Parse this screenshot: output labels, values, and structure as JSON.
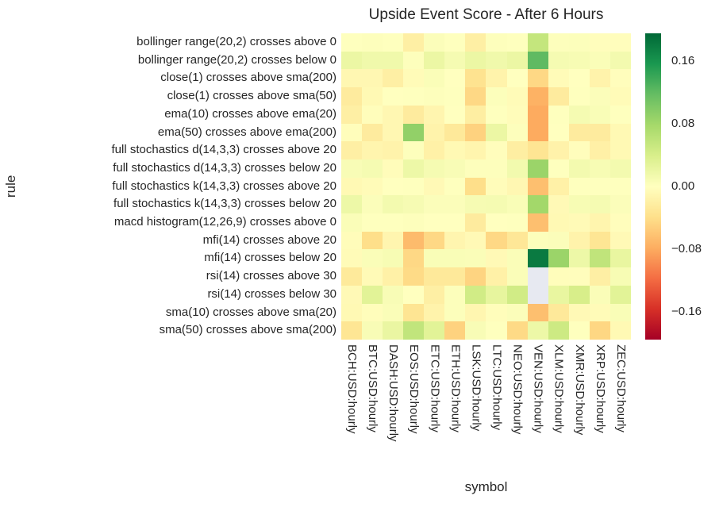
{
  "chart_data": {
    "type": "heatmap",
    "title": "Upside Event Score - After 6 Hours",
    "xlabel": "symbol",
    "ylabel": "rule",
    "columns": [
      "BCH:USD:hourly",
      "BTC:USD:hourly",
      "DASH:USD:hourly",
      "EOS:USD:hourly",
      "ETC:USD:hourly",
      "ETH:USD:hourly",
      "LSK:USD:hourly",
      "LTC:USD:hourly",
      "NEO:USD:hourly",
      "VEN:USD:hourly",
      "XLM:USD:hourly",
      "XMR:USD:hourly",
      "XRP:USD:hourly",
      "ZEC:USD:hourly"
    ],
    "rows": [
      "bollinger range(20,2) crosses above 0",
      "bollinger range(20,2) crosses below 0",
      "close(1) crosses above sma(200)",
      "close(1) crosses above sma(50)",
      "ema(10) crosses above ema(20)",
      "ema(50) crosses above ema(200)",
      "full stochastics d(14,3,3) crosses above 20",
      "full stochastics d(14,3,3) crosses below 20",
      "full stochastics k(14,3,3) crosses above 20",
      "full stochastics k(14,3,3) crosses below 20",
      "macd histogram(12,26,9) crosses above 0",
      "mfi(14) crosses above 20",
      "mfi(14) crosses below 20",
      "rsi(14) crosses above 30",
      "rsi(14) crosses below 30",
      "sma(10) crosses above sma(20)",
      "sma(50) crosses above sma(200)"
    ],
    "values": [
      [
        0.001,
        0.002,
        0.001,
        -0.02,
        0.004,
        0.001,
        -0.02,
        0.002,
        0.001,
        0.055,
        0.002,
        0.003,
        -0.002,
        -0.002
      ],
      [
        0.02,
        0.015,
        0.015,
        0.002,
        0.02,
        0.01,
        0.02,
        0.015,
        0.02,
        0.12,
        0.01,
        0.008,
        0.005,
        0.012
      ],
      [
        -0.01,
        -0.01,
        -0.02,
        -0.005,
        0.005,
        0.0,
        -0.035,
        -0.015,
        0.0,
        -0.045,
        -0.005,
        0.0,
        -0.015,
        -0.002
      ],
      [
        -0.025,
        -0.008,
        0.0,
        0.001,
        0.002,
        0.001,
        -0.045,
        0.003,
        -0.005,
        -0.075,
        -0.025,
        0.001,
        0.004,
        -0.005
      ],
      [
        -0.02,
        -0.003,
        -0.01,
        -0.025,
        -0.012,
        0.0,
        -0.022,
        0.001,
        -0.004,
        -0.08,
        0.001,
        0.01,
        0.006,
        0.001
      ],
      [
        -0.003,
        -0.025,
        -0.01,
        0.09,
        -0.015,
        -0.028,
        -0.05,
        0.02,
        0.002,
        -0.08,
        0.0,
        -0.025,
        -0.025,
        -0.008
      ],
      [
        -0.02,
        -0.013,
        -0.015,
        0.002,
        -0.018,
        -0.008,
        -0.013,
        -0.002,
        -0.022,
        -0.033,
        -0.016,
        -0.002,
        -0.019,
        -0.008
      ],
      [
        0.007,
        0.01,
        -0.004,
        0.018,
        0.01,
        0.007,
        0.002,
        0.002,
        0.013,
        0.085,
        0.001,
        0.012,
        0.008,
        0.012
      ],
      [
        -0.008,
        -0.005,
        0.0,
        0.001,
        -0.007,
        0.001,
        -0.04,
        -0.004,
        -0.01,
        -0.065,
        -0.018,
        0.001,
        0.001,
        0.001
      ],
      [
        0.018,
        0.004,
        0.012,
        0.009,
        0.004,
        0.004,
        0.009,
        0.01,
        0.006,
        0.08,
        -0.007,
        0.008,
        0.01,
        0.004
      ],
      [
        0.005,
        0.001,
        0.001,
        0.002,
        0.0,
        0.0,
        -0.025,
        0.0,
        0.001,
        -0.065,
        -0.008,
        -0.006,
        -0.013,
        -0.002
      ],
      [
        -0.004,
        -0.04,
        -0.012,
        -0.068,
        -0.045,
        -0.012,
        -0.007,
        -0.045,
        -0.03,
        0.003,
        0.004,
        -0.015,
        -0.032,
        -0.007
      ],
      [
        -0.005,
        0.005,
        0.008,
        -0.045,
        0.006,
        0.006,
        0.005,
        -0.007,
        0.005,
        0.18,
        0.085,
        0.018,
        0.058,
        0.023
      ],
      [
        -0.027,
        -0.006,
        -0.018,
        -0.043,
        -0.028,
        -0.028,
        -0.048,
        -0.018,
        0.005,
        null,
        -0.003,
        -0.002,
        -0.02,
        0.008
      ],
      [
        -0.007,
        0.03,
        0.007,
        0.0,
        -0.02,
        0.003,
        0.045,
        0.025,
        0.045,
        null,
        0.023,
        0.04,
        0.005,
        0.03
      ],
      [
        -0.008,
        -0.003,
        0.005,
        -0.033,
        -0.015,
        0.003,
        -0.011,
        -0.003,
        0.004,
        -0.065,
        -0.028,
        -0.007,
        -0.005,
        0.006
      ],
      [
        -0.032,
        0.007,
        0.022,
        0.057,
        0.03,
        -0.05,
        0.007,
        0.001,
        -0.044,
        0.018,
        0.048,
        0.001,
        -0.046,
        -0.008
      ]
    ],
    "colorbar": {
      "colormap": "RdYlGn",
      "vmin": -0.195,
      "vmax": 0.195,
      "tick_values": [
        0.16,
        0.08,
        0.0,
        -0.08,
        -0.16
      ],
      "tick_labels": [
        "0.16",
        "0.08",
        "0.00",
        "−0.08",
        "−0.16"
      ]
    },
    "layout_hints": {
      "legend": "colorbar-right",
      "grid": false,
      "x_tick_rotation": 90
    }
  },
  "colors": {
    "text": "#262626",
    "nan_cell": "#e7e9f1",
    "background": "#ffffff"
  }
}
